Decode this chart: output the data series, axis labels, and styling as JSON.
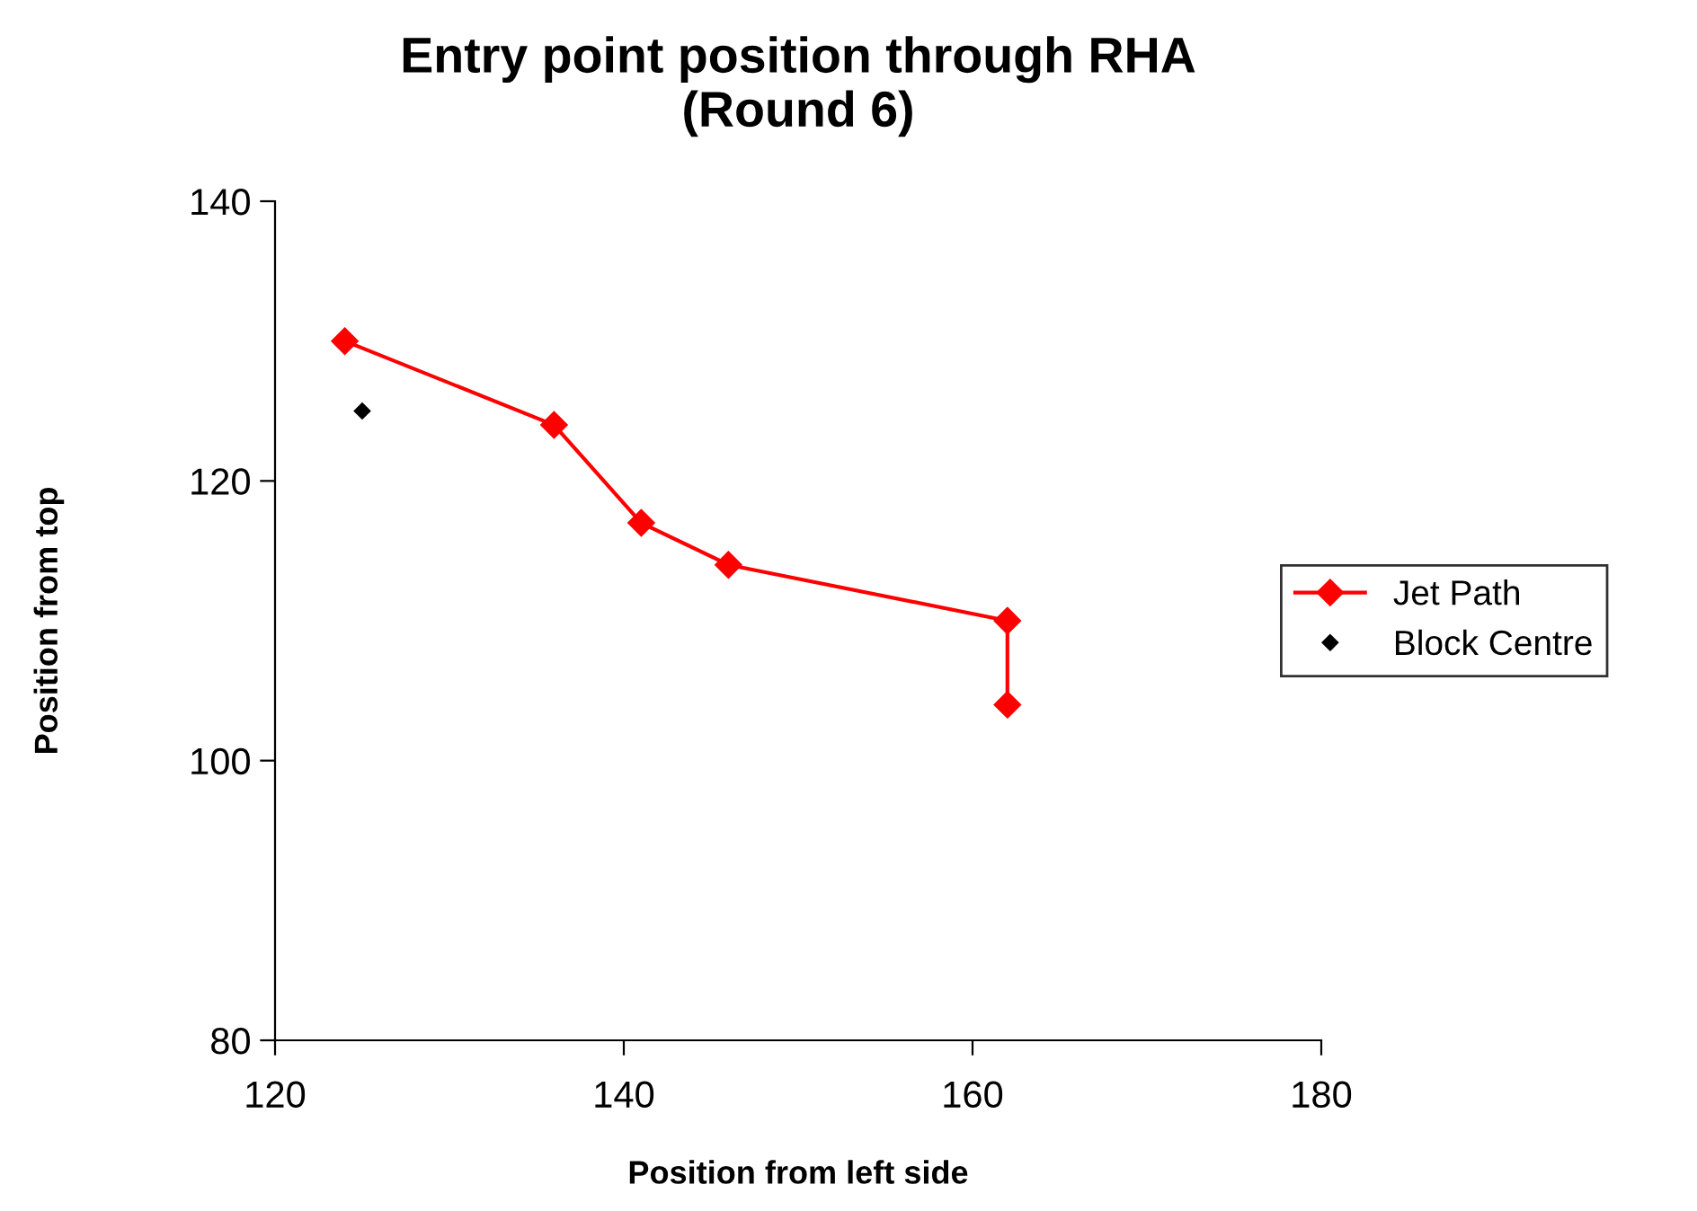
{
  "chart_data": {
    "type": "line",
    "title": "Entry point position through RHA\n(Round 6)",
    "xlabel": "Position from left side",
    "ylabel": "Position from top",
    "series": [
      {
        "name": "Jet Path",
        "color": "#ff0000",
        "marker": "diamond",
        "x": [
          124,
          136,
          141,
          146,
          162,
          162
        ],
        "values": [
          130,
          124,
          117,
          114,
          110,
          104
        ]
      },
      {
        "name": "Block Centre",
        "type": "scatter",
        "color": "#000000",
        "marker": "diamond",
        "x": [
          125
        ],
        "values": [
          125
        ]
      }
    ],
    "xlim": [
      120,
      180
    ],
    "xticks": [
      120,
      140,
      160,
      180
    ],
    "ylim": [
      80,
      140
    ],
    "yticks": [
      80,
      100,
      120,
      140
    ],
    "grid": false,
    "legend": "right"
  }
}
